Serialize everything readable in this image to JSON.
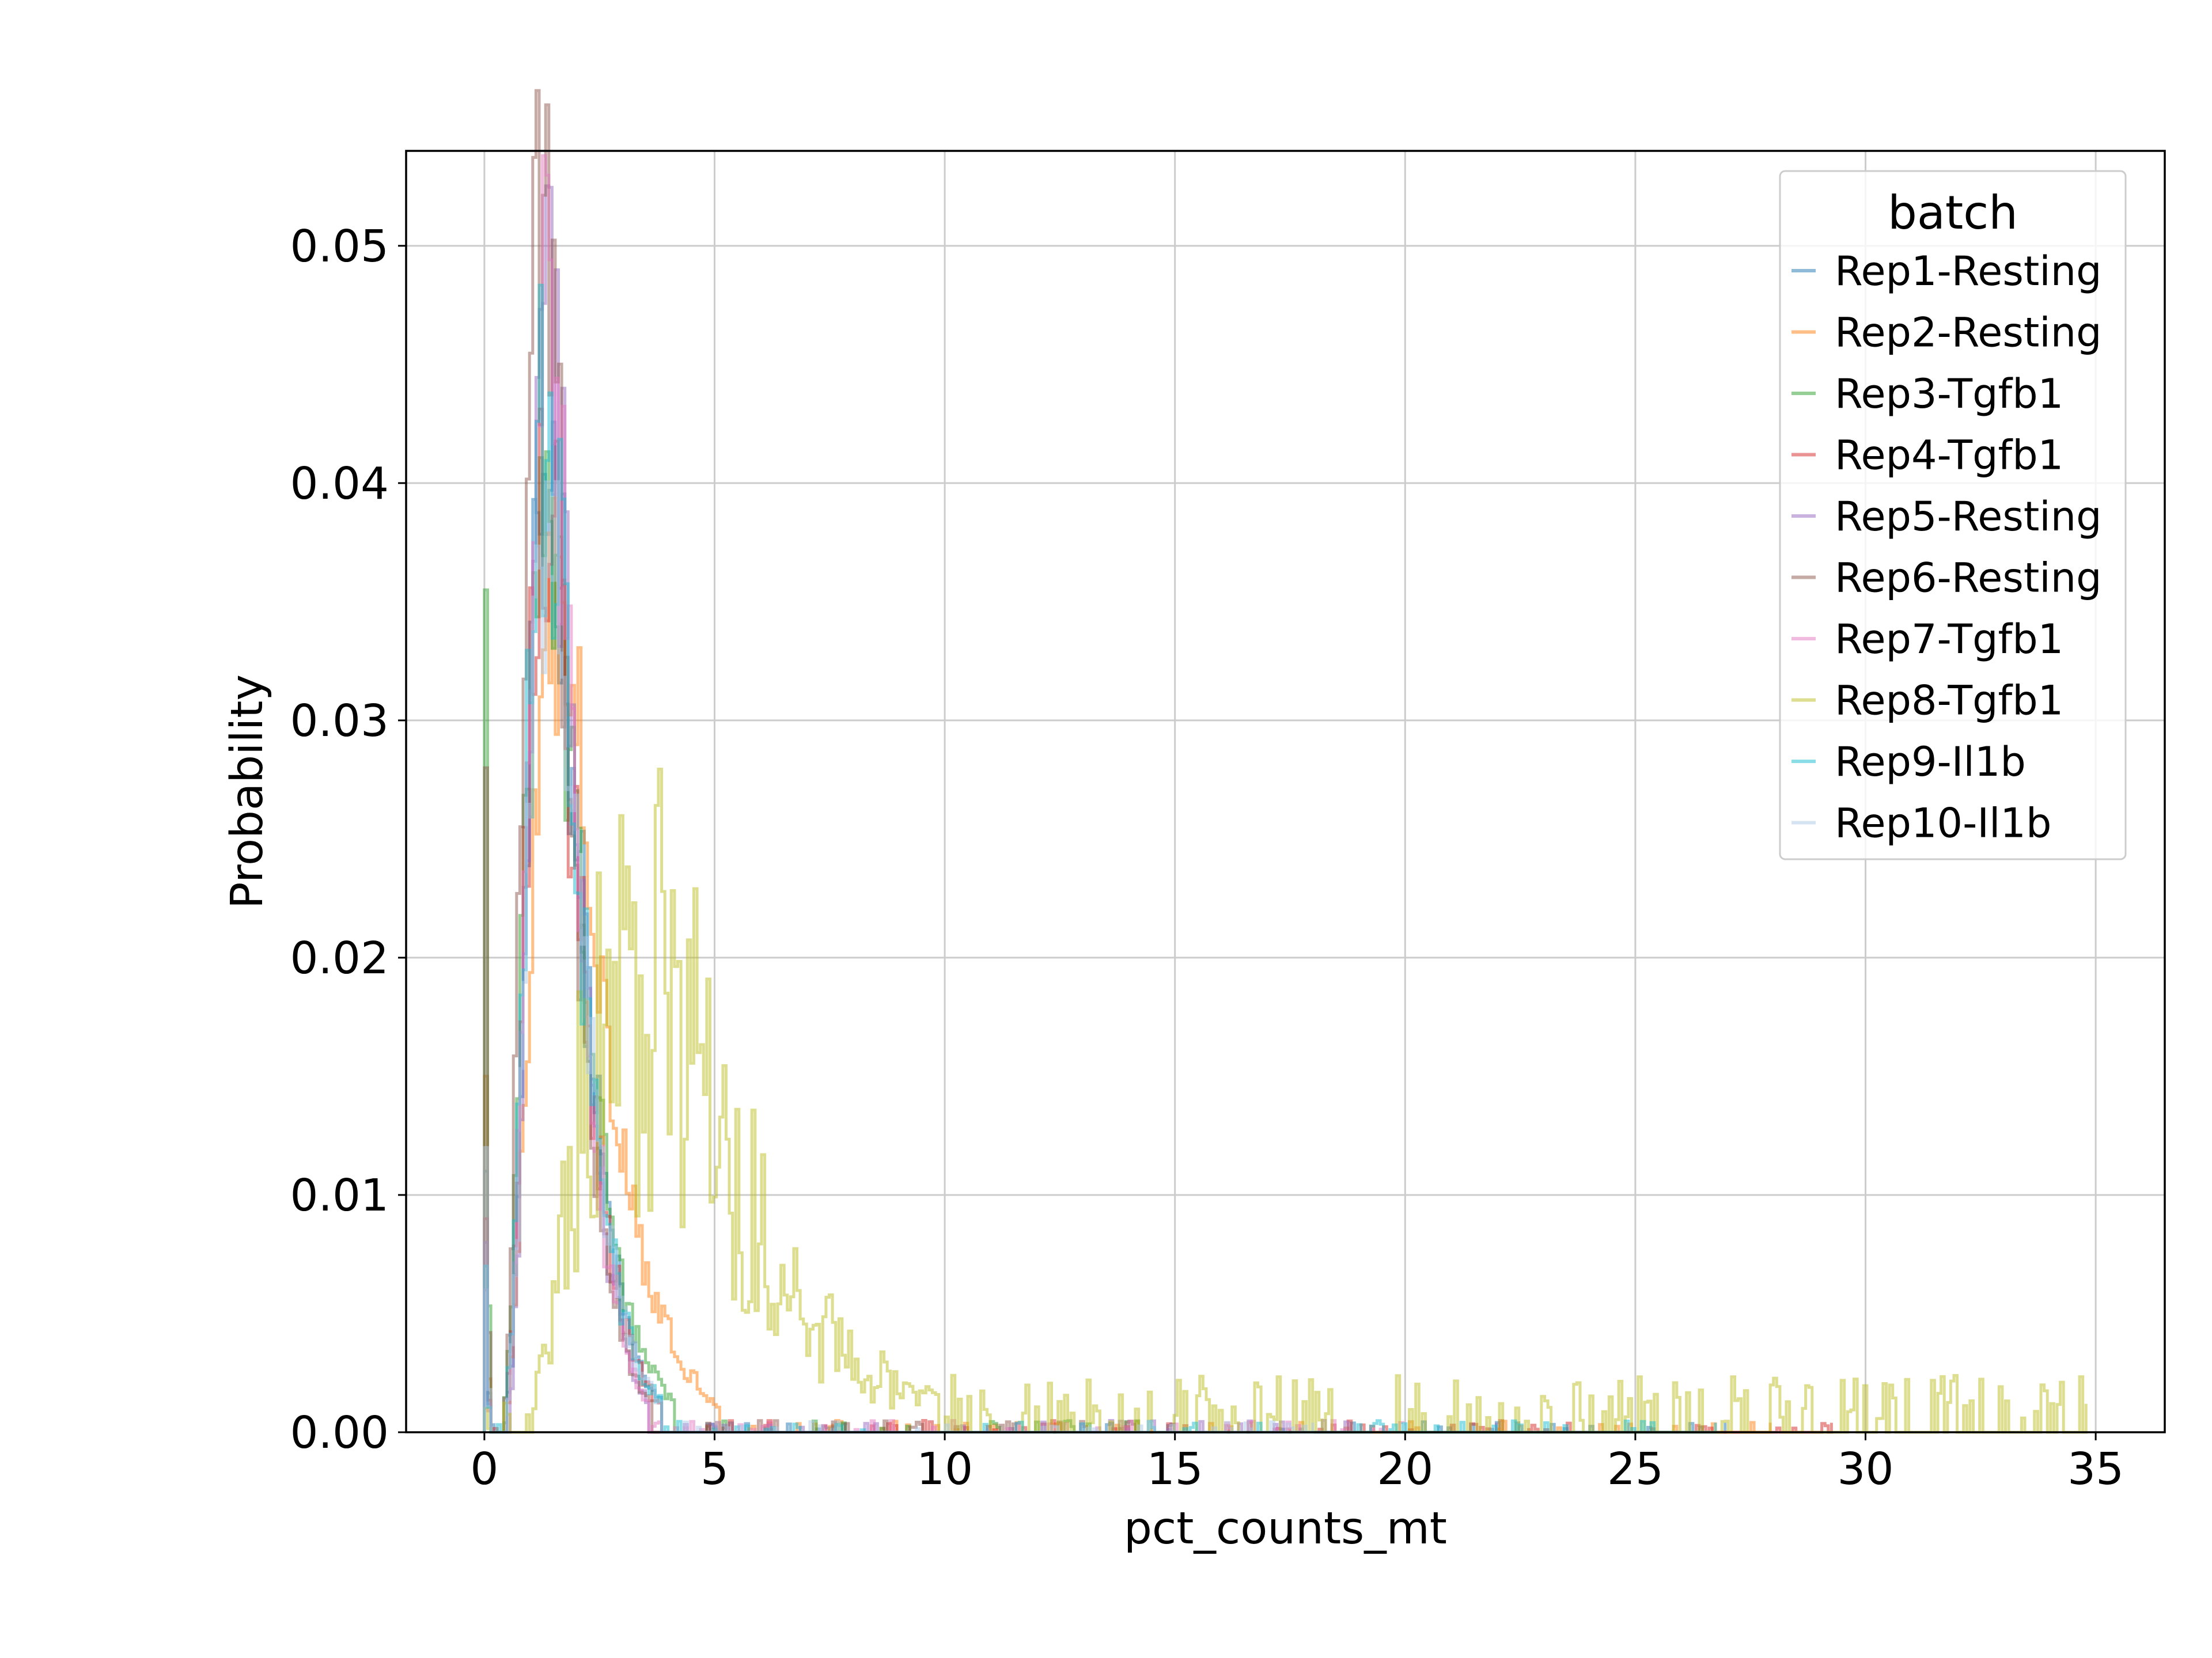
{
  "chart_data": {
    "type": "line",
    "xlabel": "pct_counts_mt",
    "ylabel": "Probability",
    "xlim": [
      -1.7,
      36.5
    ],
    "ylim": [
      0,
      0.054
    ],
    "xticks": [
      0,
      5,
      10,
      15,
      20,
      25,
      30,
      35
    ],
    "xtick_labels": [
      "0",
      "5",
      "10",
      "15",
      "20",
      "25",
      "30",
      "35"
    ],
    "yticks": [
      0,
      0.01,
      0.02,
      0.03,
      0.04,
      0.05
    ],
    "ytick_labels": [
      "0.00",
      "0.01",
      "0.02",
      "0.03",
      "0.04",
      "0.05"
    ],
    "grid": true,
    "legend": {
      "title": "batch",
      "placement": "upper right"
    },
    "series": [
      {
        "name": "Rep1-Resting",
        "color": "#1f77b4",
        "peak_x": 1.35,
        "peak_y": 0.041,
        "width": 0.55,
        "zero_spike": 0.011,
        "tail_max": 27
      },
      {
        "name": "Rep2-Resting",
        "color": "#ff7f0e",
        "peak_x": 1.55,
        "peak_y": 0.034,
        "width": 0.75,
        "zero_spike": 0.015,
        "tail_max": 28
      },
      {
        "name": "Rep3-Tgfb1",
        "color": "#2ca02c",
        "peak_x": 1.3,
        "peak_y": 0.038,
        "width": 0.6,
        "zero_spike": 0.0355,
        "tail_max": 15
      },
      {
        "name": "Rep4-Tgfb1",
        "color": "#d62728",
        "peak_x": 1.3,
        "peak_y": 0.04,
        "width": 0.55,
        "zero_spike": 0.009,
        "tail_max": 29.3
      },
      {
        "name": "Rep5-Resting",
        "color": "#9467bd",
        "peak_x": 1.35,
        "peak_y": 0.045,
        "width": 0.5,
        "zero_spike": 0.008,
        "tail_max": 22
      },
      {
        "name": "Rep6-Resting",
        "color": "#8c564b",
        "peak_x": 1.2,
        "peak_y": 0.051,
        "width": 0.5,
        "zero_spike": 0.028,
        "tail_max": 15
      },
      {
        "name": "Rep7-Tgfb1",
        "color": "#e377c2",
        "peak_x": 1.3,
        "peak_y": 0.047,
        "width": 0.5,
        "zero_spike": 0.006,
        "tail_max": 20
      },
      {
        "name": "Rep8-Tgfb1",
        "color": "#bcbd22",
        "peak_x": 3.2,
        "peak_y": 0.02,
        "width": 1.6,
        "zero_spike": 0.001,
        "tail_max": 34.8
      },
      {
        "name": "Rep9-Il1b",
        "color": "#17becf",
        "peak_x": 1.3,
        "peak_y": 0.042,
        "width": 0.55,
        "zero_spike": 0.007,
        "tail_max": 26.8
      },
      {
        "name": "Rep10-Il1b",
        "color": "#aec7e8",
        "peak_x": 1.35,
        "peak_y": 0.039,
        "width": 0.55,
        "zero_spike": 0.012,
        "tail_max": 18
      }
    ]
  }
}
